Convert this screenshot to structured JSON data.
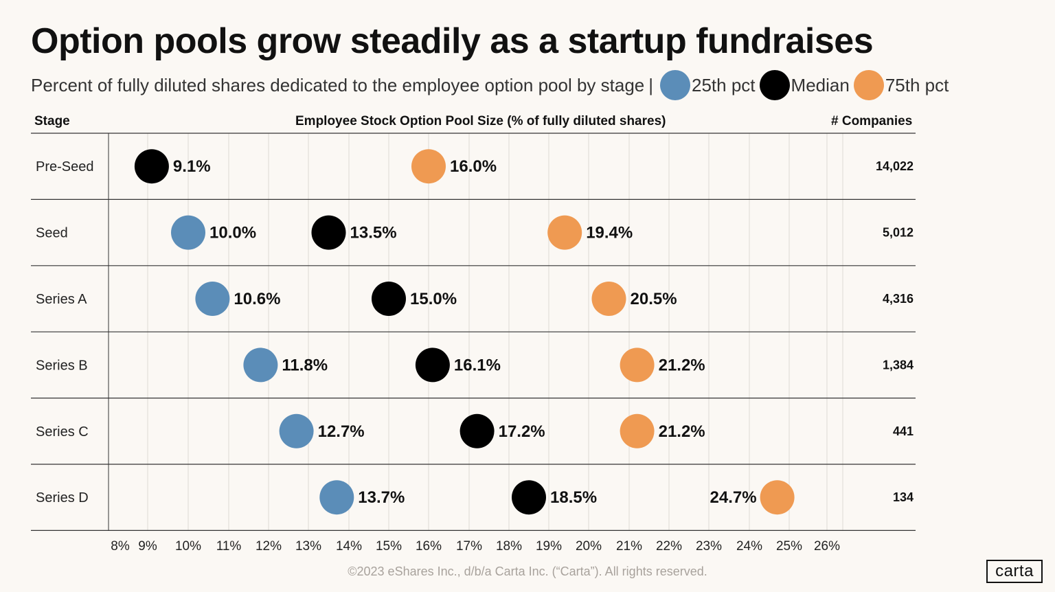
{
  "title": "Option pools grow steadily as a startup fundraises",
  "subtitle": "Percent of fully diluted shares dedicated to the employee option pool by stage",
  "subtitle_separator": "|",
  "legend": [
    {
      "label": "25th pct",
      "color": "#5b8db8"
    },
    {
      "label": "Median",
      "color": "#000000"
    },
    {
      "label": "75th pct",
      "color": "#ef9a52"
    }
  ],
  "headers": {
    "stage": "Stage",
    "axis": "Employee Stock Option Pool Size (% of fully diluted shares)",
    "companies": "# Companies"
  },
  "footer": "©2023 eShares Inc., d/b/a Carta Inc. (“Carta”). All rights reserved.",
  "logo": "carta",
  "chart_data": {
    "type": "scatter",
    "title": "Option pools grow steadily as a startup fundraises",
    "xlabel": "Employee Stock Option Pool Size (% of fully diluted shares)",
    "xlim": [
      8,
      26
    ],
    "x_ticks": [
      "8%",
      "9%",
      "10%",
      "11%",
      "12%",
      "13%",
      "14%",
      "15%",
      "16%",
      "17%",
      "18%",
      "19%",
      "20%",
      "21%",
      "22%",
      "23%",
      "24%",
      "25%",
      "26%"
    ],
    "grid": true,
    "categories": [
      "Pre-Seed",
      "Seed",
      "Series A",
      "Series B",
      "Series C",
      "Series D"
    ],
    "companies": [
      "14,022",
      "5,012",
      "4,316",
      "1,384",
      "441",
      "134"
    ],
    "series": [
      {
        "name": "25th pct",
        "color": "#5b8db8",
        "values": [
          null,
          10.0,
          10.6,
          11.8,
          12.7,
          13.7
        ],
        "labels": [
          null,
          "10.0%",
          "10.6%",
          "11.8%",
          "12.7%",
          "13.7%"
        ]
      },
      {
        "name": "Median",
        "color": "#000000",
        "values": [
          9.1,
          13.5,
          15.0,
          16.1,
          17.2,
          18.5
        ],
        "labels": [
          "9.1%",
          "13.5%",
          "15.0%",
          "16.1%",
          "17.2%",
          "18.5%"
        ]
      },
      {
        "name": "75th pct",
        "color": "#ef9a52",
        "values": [
          16.0,
          19.4,
          20.5,
          21.2,
          21.2,
          24.7
        ],
        "labels": [
          "16.0%",
          "19.4%",
          "20.5%",
          "21.2%",
          "21.2%",
          "24.7%"
        ]
      }
    ]
  }
}
